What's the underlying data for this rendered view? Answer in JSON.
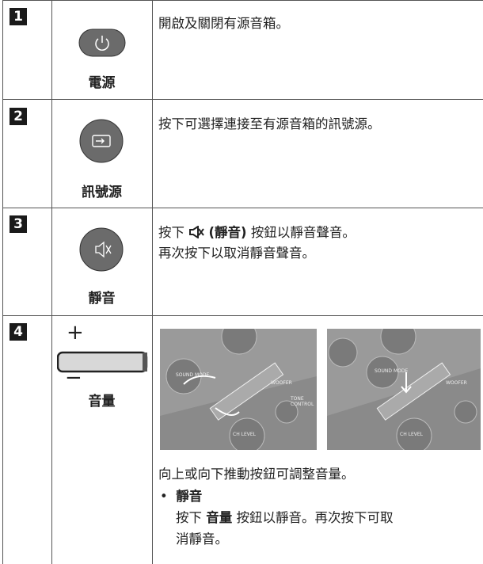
{
  "table": {
    "rows": [
      {
        "number": "1",
        "label": "電源",
        "description": [
          "開啟及關閉有源音箱。"
        ]
      },
      {
        "number": "2",
        "label": "訊號源",
        "description": [
          "按下可選擇連接至有源音箱的訊號源。"
        ]
      },
      {
        "number": "3",
        "label": "靜音",
        "description_parts": [
          "按下",
          "(靜音)",
          "按鈕以靜音聲音。"
        ],
        "description": [
          "再次按下以取消靜音聲音。"
        ]
      },
      {
        "number": "4",
        "label": "音量",
        "plus": "+",
        "minus": "−",
        "image_1_labels": [
          "SOUND MODE",
          "WOOFER",
          "TONE CONTROL",
          "CH LEVEL"
        ],
        "image_2_labels": [
          "SOUND MODE",
          "WOOFER",
          "CH LEVEL"
        ],
        "description": [
          "向上或向下推動按鈕可調整音量。"
        ],
        "bullet": {
          "title": "靜音",
          "parts": [
            "按下",
            "音量",
            "按鈕以靜音。再次按下可取"
          ],
          "continuation": "消靜音。"
        }
      }
    ]
  }
}
